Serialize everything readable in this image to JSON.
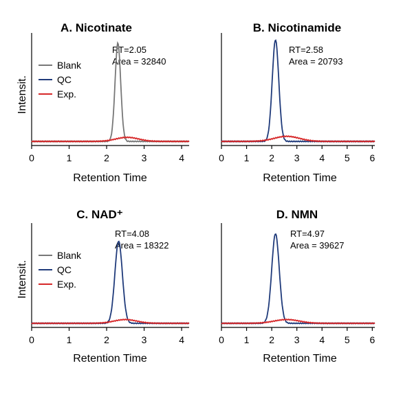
{
  "chart_data": [
    {
      "type": "line",
      "title": "A. Nicotinate",
      "xlabel": "Retention Time",
      "ylabel": "Intensit.",
      "xlim": [
        0,
        4.2
      ],
      "xticks": [
        0,
        1,
        2,
        3,
        4
      ],
      "ylim": [
        0,
        1
      ],
      "annotation": {
        "rt": "RT=2.05",
        "area": "Area = 32840"
      },
      "legend": [
        "Blank",
        "QC",
        "Exp."
      ],
      "series": [
        {
          "name": "Blank",
          "color": "#777777",
          "peak": {
            "center": 2.3,
            "height": 0.97,
            "width": 0.075
          }
        },
        {
          "name": "Exp.",
          "color": "#d62728",
          "peak": {
            "center": 2.55,
            "height": 0.04,
            "width": 0.3
          }
        }
      ]
    },
    {
      "type": "line",
      "title": "B. Nicotinamide",
      "xlabel": "Retention Time",
      "ylabel": "",
      "xlim": [
        0,
        6.1
      ],
      "xticks": [
        0,
        1,
        2,
        3,
        4,
        5,
        6
      ],
      "ylim": [
        0,
        1
      ],
      "annotation": {
        "rt": "RT=2.58",
        "area": "Area = 20793"
      },
      "legend": [],
      "series": [
        {
          "name": "QC",
          "color": "#1f3a7a",
          "peak": {
            "center": 2.15,
            "height": 1.0,
            "width": 0.13
          }
        },
        {
          "name": "Exp.",
          "color": "#d62728",
          "peak": {
            "center": 2.6,
            "height": 0.05,
            "width": 0.5
          }
        }
      ]
    },
    {
      "type": "line",
      "title": "C. NAD⁺",
      "xlabel": "Retention Time",
      "ylabel": "Intensit.",
      "xlim": [
        0,
        4.2
      ],
      "xticks": [
        0,
        1,
        2,
        3,
        4
      ],
      "ylim": [
        0,
        1
      ],
      "annotation": {
        "rt": "RT=4.08",
        "area": "Area = 18322"
      },
      "legend": [
        "Blank",
        "QC",
        "Exp."
      ],
      "series": [
        {
          "name": "QC",
          "color": "#1f3a7a",
          "peak": {
            "center": 2.32,
            "height": 0.88,
            "width": 0.1
          }
        },
        {
          "name": "Exp.",
          "color": "#d62728",
          "peak": {
            "center": 2.5,
            "height": 0.04,
            "width": 0.3
          }
        }
      ]
    },
    {
      "type": "line",
      "title": "D. NMN",
      "xlabel": "Retention Time",
      "ylabel": "",
      "xlim": [
        0,
        6.1
      ],
      "xticks": [
        0,
        1,
        2,
        3,
        4,
        5,
        6
      ],
      "ylim": [
        0,
        1
      ],
      "annotation": {
        "rt": "RT=4.97",
        "area": "Area = 39627"
      },
      "legend": [],
      "series": [
        {
          "name": "QC",
          "color": "#1f3a7a",
          "peak": {
            "center": 2.15,
            "height": 0.96,
            "width": 0.15
          }
        },
        {
          "name": "Exp.",
          "color": "#d62728",
          "peak": {
            "center": 2.6,
            "height": 0.04,
            "width": 0.5
          }
        }
      ]
    }
  ]
}
